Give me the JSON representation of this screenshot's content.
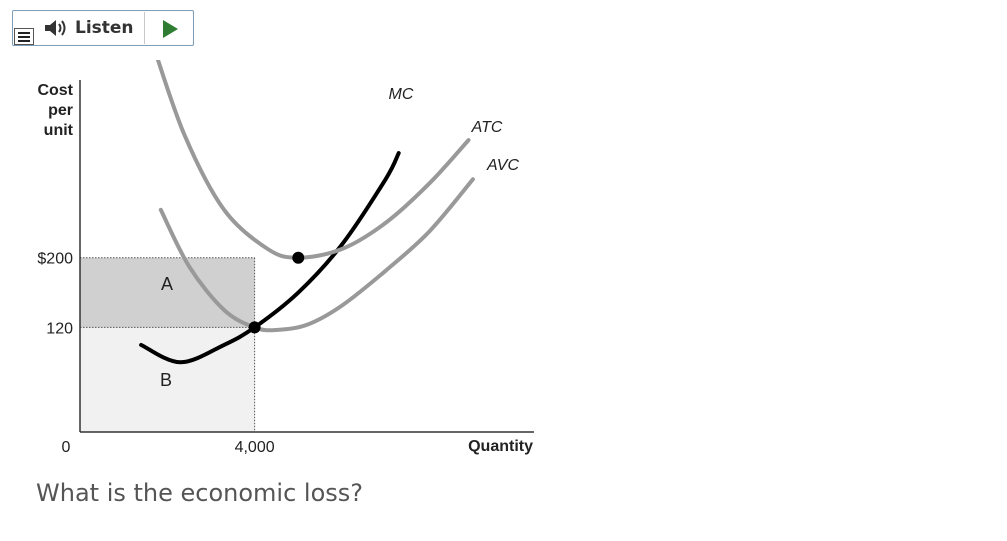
{
  "toolbar": {
    "listen_label": "Listen",
    "menu_icon": "menu-icon",
    "speaker_icon": "speaker-icon",
    "play_icon": "play-icon",
    "play_color": "#2e7d32"
  },
  "chart_data": {
    "type": "line",
    "ylabel": [
      "Cost",
      "per",
      "unit"
    ],
    "xlabel": "Quantity",
    "origin_label": "0",
    "x_tick_labels": [
      "4,000"
    ],
    "y_tick_labels": [
      "$200",
      "120"
    ],
    "x_ticks": [
      4000
    ],
    "y_ticks": [
      200,
      120
    ],
    "xlim": [
      0,
      10400
    ],
    "ylim": [
      0,
      420
    ],
    "series": [
      {
        "name": "MC",
        "color": "#000000",
        "points": [
          [
            1400,
            100
          ],
          [
            2300,
            80
          ],
          [
            3300,
            100
          ],
          [
            4000,
            120
          ],
          [
            5000,
            160
          ],
          [
            6000,
            215
          ],
          [
            7000,
            290
          ],
          [
            7300,
            320
          ]
        ]
      },
      {
        "name": "ATC",
        "color": "#999999",
        "points": [
          [
            1700,
            440
          ],
          [
            2400,
            340
          ],
          [
            3300,
            255
          ],
          [
            4300,
            210
          ],
          [
            5000,
            200
          ],
          [
            6000,
            210
          ],
          [
            7000,
            240
          ],
          [
            8000,
            285
          ],
          [
            8900,
            335
          ]
        ]
      },
      {
        "name": "AVC",
        "color": "#999999",
        "points": [
          [
            1850,
            255
          ],
          [
            2500,
            190
          ],
          [
            3300,
            140
          ],
          [
            4000,
            120
          ],
          [
            4500,
            117
          ],
          [
            5200,
            123
          ],
          [
            6000,
            145
          ],
          [
            7000,
            185
          ],
          [
            8000,
            230
          ],
          [
            9000,
            290
          ]
        ]
      }
    ],
    "points_marked": [
      [
        4000,
        120
      ],
      [
        5000,
        200
      ]
    ],
    "region_labels": [
      "A",
      "B"
    ],
    "region_colors": {
      "A": "#d0d0d0",
      "B": "#f1f1f1"
    }
  },
  "question": "What is the economic loss?"
}
